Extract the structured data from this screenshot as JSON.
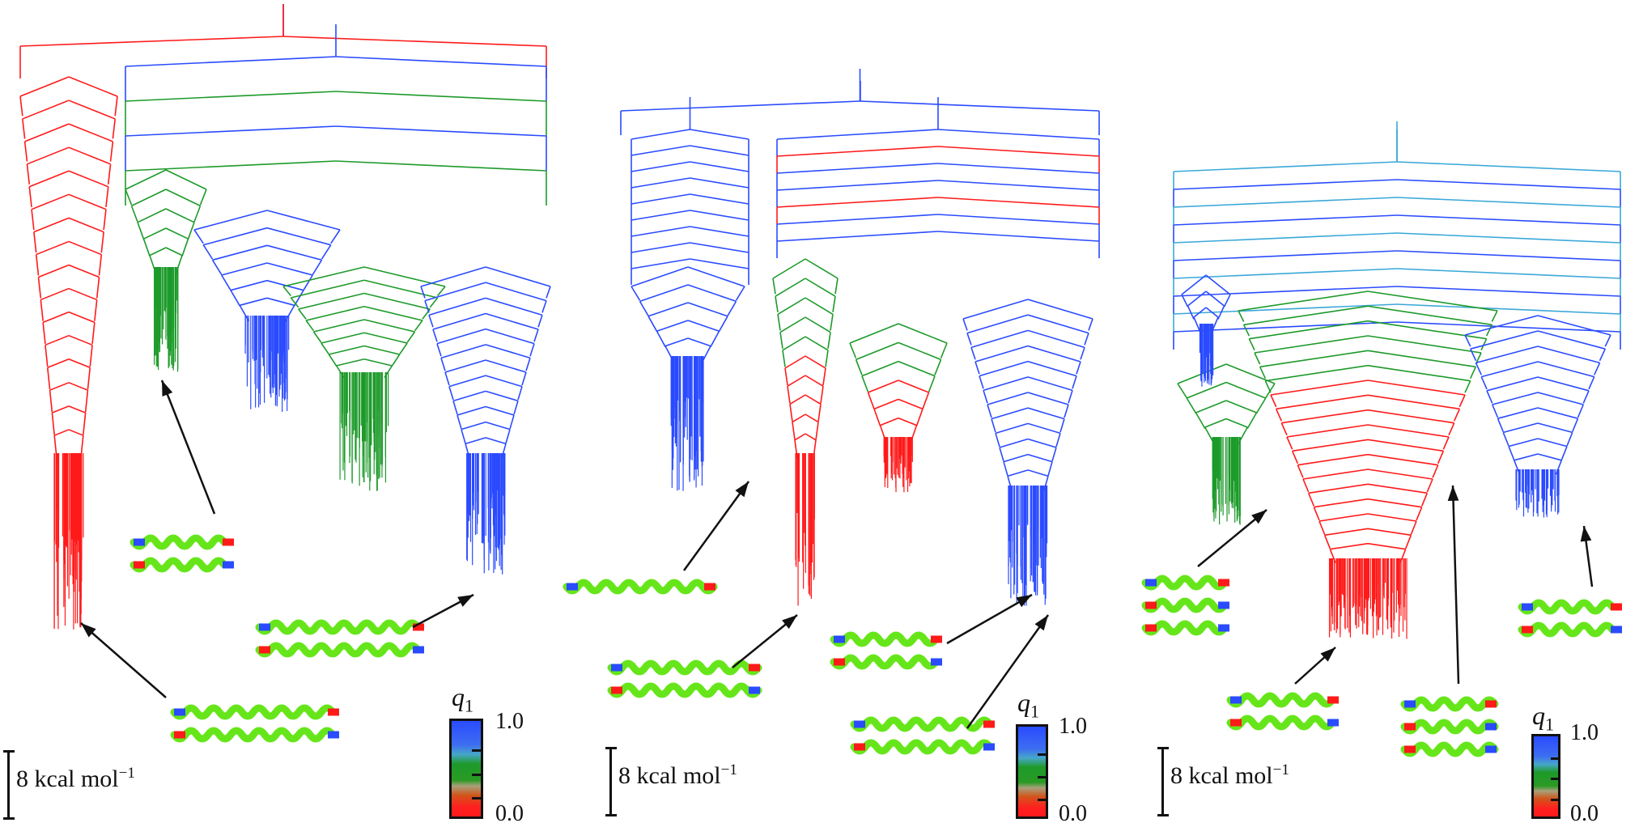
{
  "panels": [
    {
      "scale_label": "8 kcal mol",
      "scale_exp": "−1",
      "colorbar": {
        "label": "q",
        "label_sub": "1",
        "max": "1.0",
        "min": "0.0"
      }
    },
    {
      "scale_label": "8 kcal mol",
      "scale_exp": "−1",
      "colorbar": {
        "label": "q",
        "label_sub": "1",
        "max": "1.0",
        "min": "0.0"
      }
    },
    {
      "scale_label": "8 kcal mol",
      "scale_exp": "−1",
      "colorbar": {
        "label": "q",
        "label_sub": "1",
        "max": "1.0",
        "min": "0.0"
      }
    }
  ],
  "colors": {
    "low_q1": "#ff1a1a",
    "mid_q1": "#1d9a2a",
    "high_q1": "#2a4bff",
    "helix": "#66e61a"
  }
}
